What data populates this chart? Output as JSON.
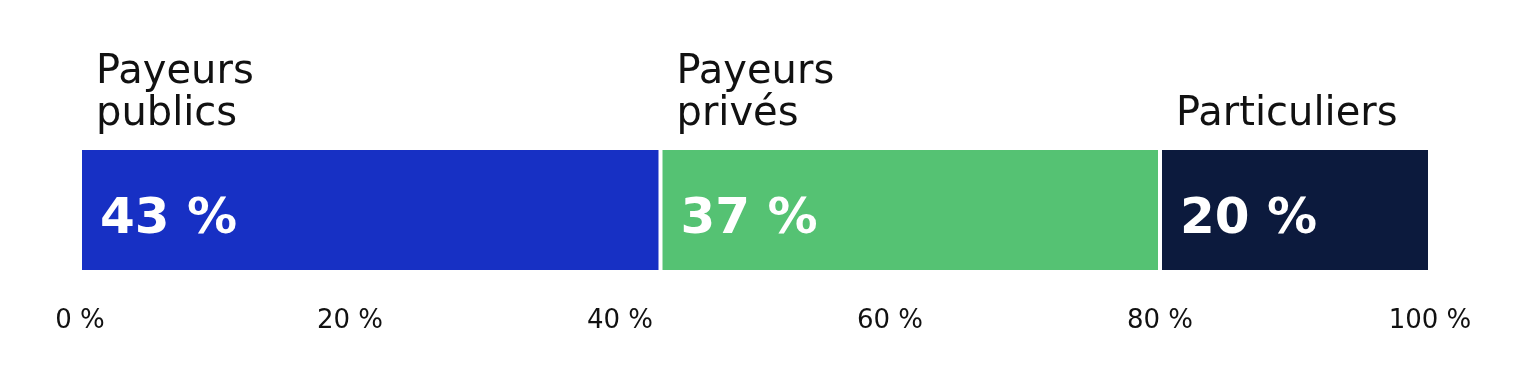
{
  "chart_data": {
    "type": "bar",
    "orientation": "horizontal",
    "stacked": true,
    "categories": [
      null
    ],
    "series": [
      {
        "name": "Payeurs\npublics",
        "color": "#1730c4",
        "values": [
          43
        ],
        "value_labels": [
          "43 %"
        ]
      },
      {
        "name": "Payeurs\nprivés",
        "color": "#55c273",
        "values": [
          37
        ],
        "value_labels": [
          "37 %"
        ]
      },
      {
        "name": "Particuliers",
        "color": "#0c1a3d",
        "values": [
          20
        ],
        "value_labels": [
          "20 %"
        ]
      }
    ],
    "xlim": [
      0,
      100
    ],
    "xticks": [
      {
        "value": 0,
        "label": "0 %"
      },
      {
        "value": 20,
        "label": "20 %"
      },
      {
        "value": 40,
        "label": "40 %"
      },
      {
        "value": 60,
        "label": "60 %"
      },
      {
        "value": 80,
        "label": "80 %"
      },
      {
        "value": 100,
        "label": "100 %"
      }
    ],
    "grid": false
  }
}
